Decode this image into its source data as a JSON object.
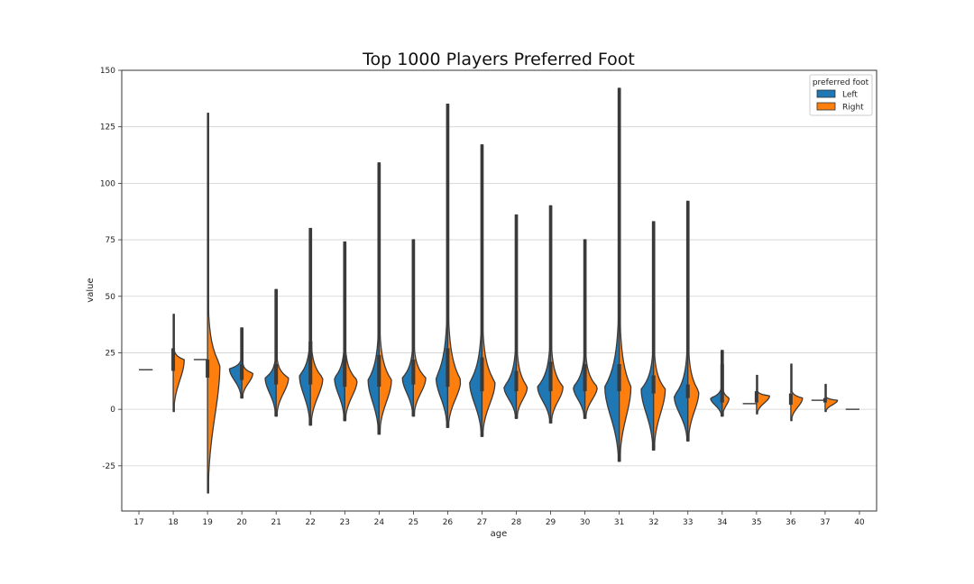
{
  "chart_data": {
    "type": "violin",
    "title": "Top 1000 Players Preferred Foot",
    "xlabel": "age",
    "ylabel": "value",
    "ylim": [
      -45,
      150
    ],
    "yticks": [
      -25,
      0,
      25,
      50,
      75,
      100,
      125,
      150
    ],
    "grid": "horizontal",
    "legend": {
      "title": "preferred foot",
      "position": "top-right"
    },
    "categories": [
      "17",
      "18",
      "19",
      "20",
      "21",
      "22",
      "23",
      "24",
      "25",
      "26",
      "27",
      "28",
      "29",
      "30",
      "31",
      "32",
      "33",
      "34",
      "35",
      "36",
      "37",
      "40"
    ],
    "series": [
      {
        "name": "Left",
        "color": "#1f77b4",
        "violins": [
          null,
          null,
          {
            "min": 22,
            "max": 22,
            "peak": 22,
            "width": 0.4,
            "median": 22
          },
          {
            "min": 5,
            "max": 36,
            "peak": 18,
            "width": 0.36,
            "median": 16,
            "q1": 13,
            "q3": 20
          },
          {
            "min": -3,
            "max": 53,
            "peak": 14,
            "width": 0.32,
            "median": 15,
            "q1": 11,
            "q3": 20
          },
          {
            "min": -7,
            "max": 80,
            "peak": 15,
            "width": 0.32,
            "median": 19,
            "q1": 11,
            "q3": 30
          },
          {
            "min": -5,
            "max": 74,
            "peak": 14,
            "width": 0.3,
            "median": 14,
            "q1": 10,
            "q3": 24
          },
          {
            "min": -11,
            "max": 109,
            "peak": 13,
            "width": 0.32,
            "median": 16,
            "q1": 10,
            "q3": 24
          },
          {
            "min": -3,
            "max": 75,
            "peak": 14,
            "width": 0.32,
            "median": 15,
            "q1": 11,
            "q3": 22
          },
          {
            "min": -8,
            "max": 135,
            "peak": 14,
            "width": 0.34,
            "median": 15,
            "q1": 10,
            "q3": 27
          },
          {
            "min": -12,
            "max": 117,
            "peak": 12,
            "width": 0.36,
            "median": 13,
            "q1": 8,
            "q3": 23
          },
          {
            "min": -4,
            "max": 86,
            "peak": 10,
            "width": 0.36,
            "median": 12,
            "q1": 8,
            "q3": 17
          },
          {
            "min": -6,
            "max": 90,
            "peak": 10,
            "width": 0.38,
            "median": 12,
            "q1": 8,
            "q3": 21
          },
          {
            "min": -4,
            "max": 75,
            "peak": 10,
            "width": 0.34,
            "median": 10,
            "q1": 8,
            "q3": 20
          },
          {
            "min": -23,
            "max": 142,
            "peak": 10,
            "width": 0.42,
            "median": 14,
            "q1": 8,
            "q3": 20
          },
          {
            "min": -18,
            "max": 83,
            "peak": 9,
            "width": 0.36,
            "median": 10,
            "q1": 7,
            "q3": 15
          },
          {
            "min": -14,
            "max": 92,
            "peak": 6,
            "width": 0.4,
            "median": 7,
            "q1": 5,
            "q3": 11
          },
          {
            "min": -3,
            "max": 26,
            "peak": 5,
            "width": 0.34,
            "median": 5,
            "q1": 3,
            "q3": 20
          },
          {
            "min": 2.5,
            "max": 2.5,
            "peak": 2.5,
            "width": 0.4,
            "median": 2.5
          },
          null,
          {
            "min": 4,
            "max": 4,
            "peak": 4,
            "width": 0.4,
            "median": 4
          },
          {
            "min": 0,
            "max": 0,
            "peak": 0,
            "width": 0.4,
            "median": 0
          }
        ]
      },
      {
        "name": "Right",
        "color": "#ff7f0e",
        "violins": [
          {
            "min": 17.5,
            "max": 17.5,
            "peak": 17.5,
            "width": 0.4,
            "median": 17.5
          },
          {
            "min": -1,
            "max": 42,
            "peak": 22,
            "width": 0.32,
            "median": 21,
            "q1": 17,
            "q3": 27
          },
          {
            "min": -37,
            "max": 131,
            "peak": 20,
            "width": 0.36,
            "median": 18,
            "q1": 14,
            "q3": 22
          },
          {
            "min": 5,
            "max": 36,
            "peak": 16,
            "width": 0.32,
            "median": 16,
            "q1": 13,
            "q3": 20
          },
          {
            "min": -3,
            "max": 53,
            "peak": 14,
            "width": 0.36,
            "median": 15,
            "q1": 11,
            "q3": 20
          },
          {
            "min": -7,
            "max": 80,
            "peak": 14,
            "width": 0.36,
            "median": 19,
            "q1": 11,
            "q3": 30
          },
          {
            "min": -5,
            "max": 74,
            "peak": 13,
            "width": 0.36,
            "median": 14,
            "q1": 10,
            "q3": 24
          },
          {
            "min": -11,
            "max": 109,
            "peak": 13,
            "width": 0.36,
            "median": 16,
            "q1": 10,
            "q3": 24
          },
          {
            "min": -3,
            "max": 75,
            "peak": 14,
            "width": 0.36,
            "median": 15,
            "q1": 11,
            "q3": 22
          },
          {
            "min": -8,
            "max": 135,
            "peak": 13,
            "width": 0.38,
            "median": 15,
            "q1": 10,
            "q3": 27
          },
          {
            "min": -12,
            "max": 117,
            "peak": 12,
            "width": 0.38,
            "median": 13,
            "q1": 8,
            "q3": 23
          },
          {
            "min": -4,
            "max": 86,
            "peak": 10,
            "width": 0.32,
            "median": 12,
            "q1": 8,
            "q3": 17
          },
          {
            "min": -6,
            "max": 90,
            "peak": 10,
            "width": 0.36,
            "median": 12,
            "q1": 8,
            "q3": 21
          },
          {
            "min": -4,
            "max": 75,
            "peak": 10,
            "width": 0.36,
            "median": 10,
            "q1": 8,
            "q3": 20
          },
          {
            "min": -23,
            "max": 142,
            "peak": 10,
            "width": 0.34,
            "median": 14,
            "q1": 8,
            "q3": 20
          },
          {
            "min": -18,
            "max": 83,
            "peak": 9,
            "width": 0.34,
            "median": 10,
            "q1": 7,
            "q3": 15
          },
          {
            "min": -14,
            "max": 92,
            "peak": 8,
            "width": 0.32,
            "median": 7,
            "q1": 5,
            "q3": 11
          },
          {
            "min": -3,
            "max": 26,
            "peak": 5,
            "width": 0.2,
            "median": 5,
            "q1": 3,
            "q3": 8
          },
          {
            "min": -2,
            "max": 15,
            "peak": 6,
            "width": 0.38,
            "median": 5,
            "q1": 3,
            "q3": 8
          },
          {
            "min": -5,
            "max": 20,
            "peak": 5,
            "width": 0.34,
            "median": 5,
            "q1": 2,
            "q3": 7
          },
          {
            "min": -1,
            "max": 11,
            "peak": 4,
            "width": 0.36,
            "median": 4,
            "q1": 3,
            "q3": 5
          },
          null
        ]
      }
    ]
  }
}
